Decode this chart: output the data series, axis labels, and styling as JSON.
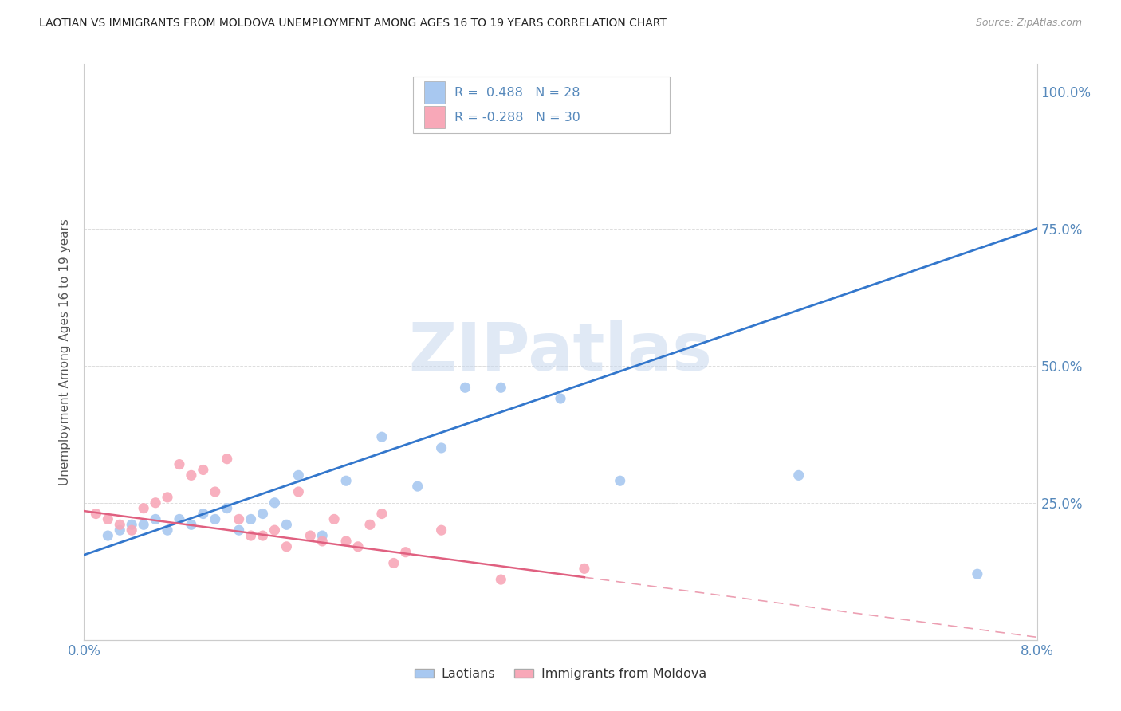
{
  "title": "LAOTIAN VS IMMIGRANTS FROM MOLDOVA UNEMPLOYMENT AMONG AGES 16 TO 19 YEARS CORRELATION CHART",
  "source": "Source: ZipAtlas.com",
  "ylabel": "Unemployment Among Ages 16 to 19 years",
  "legend1_label": "Laotians",
  "legend2_label": "Immigrants from Moldova",
  "r1_text": "R =  0.488",
  "n1_text": "N = 28",
  "r2_text": "R = -0.288",
  "n2_text": "N = 30",
  "blue_scatter_color": "#A8C8F0",
  "pink_scatter_color": "#F8A8B8",
  "trendline_blue_color": "#3377CC",
  "trendline_pink_color": "#E06080",
  "watermark_color": "#C8D8EE",
  "watermark_text": "ZIPatlas",
  "axis_label_color": "#5588BB",
  "title_color": "#222222",
  "source_color": "#999999",
  "background_color": "#FFFFFF",
  "grid_color": "#DDDDDD",
  "laotian_x": [
    0.002,
    0.003,
    0.004,
    0.005,
    0.006,
    0.007,
    0.008,
    0.009,
    0.01,
    0.011,
    0.012,
    0.013,
    0.014,
    0.015,
    0.016,
    0.017,
    0.018,
    0.02,
    0.022,
    0.025,
    0.028,
    0.03,
    0.032,
    0.035,
    0.04,
    0.045,
    0.06,
    0.075
  ],
  "laotian_y": [
    0.19,
    0.2,
    0.21,
    0.21,
    0.22,
    0.2,
    0.22,
    0.21,
    0.23,
    0.22,
    0.24,
    0.2,
    0.22,
    0.23,
    0.25,
    0.21,
    0.3,
    0.19,
    0.29,
    0.37,
    0.28,
    0.35,
    0.46,
    0.46,
    0.44,
    0.29,
    0.3,
    0.12
  ],
  "moldova_x": [
    0.001,
    0.002,
    0.003,
    0.004,
    0.005,
    0.006,
    0.007,
    0.008,
    0.009,
    0.01,
    0.011,
    0.012,
    0.013,
    0.014,
    0.015,
    0.016,
    0.017,
    0.018,
    0.019,
    0.02,
    0.021,
    0.022,
    0.023,
    0.024,
    0.025,
    0.026,
    0.027,
    0.03,
    0.035,
    0.042
  ],
  "moldova_y": [
    0.23,
    0.22,
    0.21,
    0.2,
    0.24,
    0.25,
    0.26,
    0.32,
    0.3,
    0.31,
    0.27,
    0.33,
    0.22,
    0.19,
    0.19,
    0.2,
    0.17,
    0.27,
    0.19,
    0.18,
    0.22,
    0.18,
    0.17,
    0.21,
    0.23,
    0.14,
    0.16,
    0.2,
    0.11,
    0.13
  ],
  "blue_trend_x": [
    0.0,
    0.08
  ],
  "blue_trend_y": [
    0.155,
    0.75
  ],
  "pink_trend_x": [
    0.0,
    0.08
  ],
  "pink_trend_y": [
    0.235,
    0.005
  ],
  "xlim": [
    0.0,
    0.08
  ],
  "ylim": [
    0.0,
    1.05
  ],
  "xtick_positions": [
    0.0,
    0.01,
    0.02,
    0.03,
    0.04,
    0.05,
    0.06,
    0.07,
    0.08
  ],
  "ytick_positions": [
    0.0,
    0.25,
    0.5,
    0.75,
    1.0
  ],
  "right_ytick_labels": [
    "",
    "25.0%",
    "50.0%",
    "75.0%",
    "100.0%"
  ]
}
